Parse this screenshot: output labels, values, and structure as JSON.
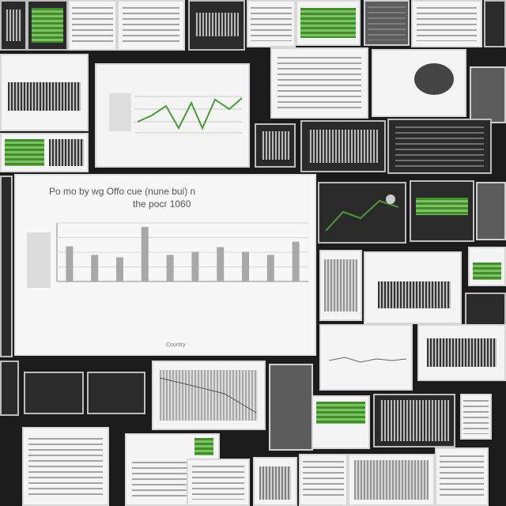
{
  "collage": {
    "description_label": ""
  },
  "main_chart": {
    "title_line1": "Po mo by wg Offo cue (nune bui) n",
    "title_line2": "the pocr 1060",
    "xlabel": "Country",
    "ylabel": "",
    "tick_labels": [
      "",
      "",
      "",
      "",
      "",
      "",
      "",
      "",
      "",
      ""
    ]
  },
  "chart_data": {
    "type": "bar",
    "title": "Po mo by wg Offo cue (nune bui) n the pocr 1060",
    "xlabel": "Country",
    "ylabel": "",
    "categories": [
      "",
      "",
      "",
      "",
      "",
      "",
      "",
      "",
      "",
      ""
    ],
    "values": [
      45,
      34,
      31,
      70,
      34,
      38,
      44,
      38,
      34,
      51
    ],
    "ylim": [
      0,
      75
    ],
    "grid": true
  },
  "colors": {
    "background": "#1c1c1c",
    "bar": "#a8a8a8",
    "line_green": "#4a9a3a"
  }
}
